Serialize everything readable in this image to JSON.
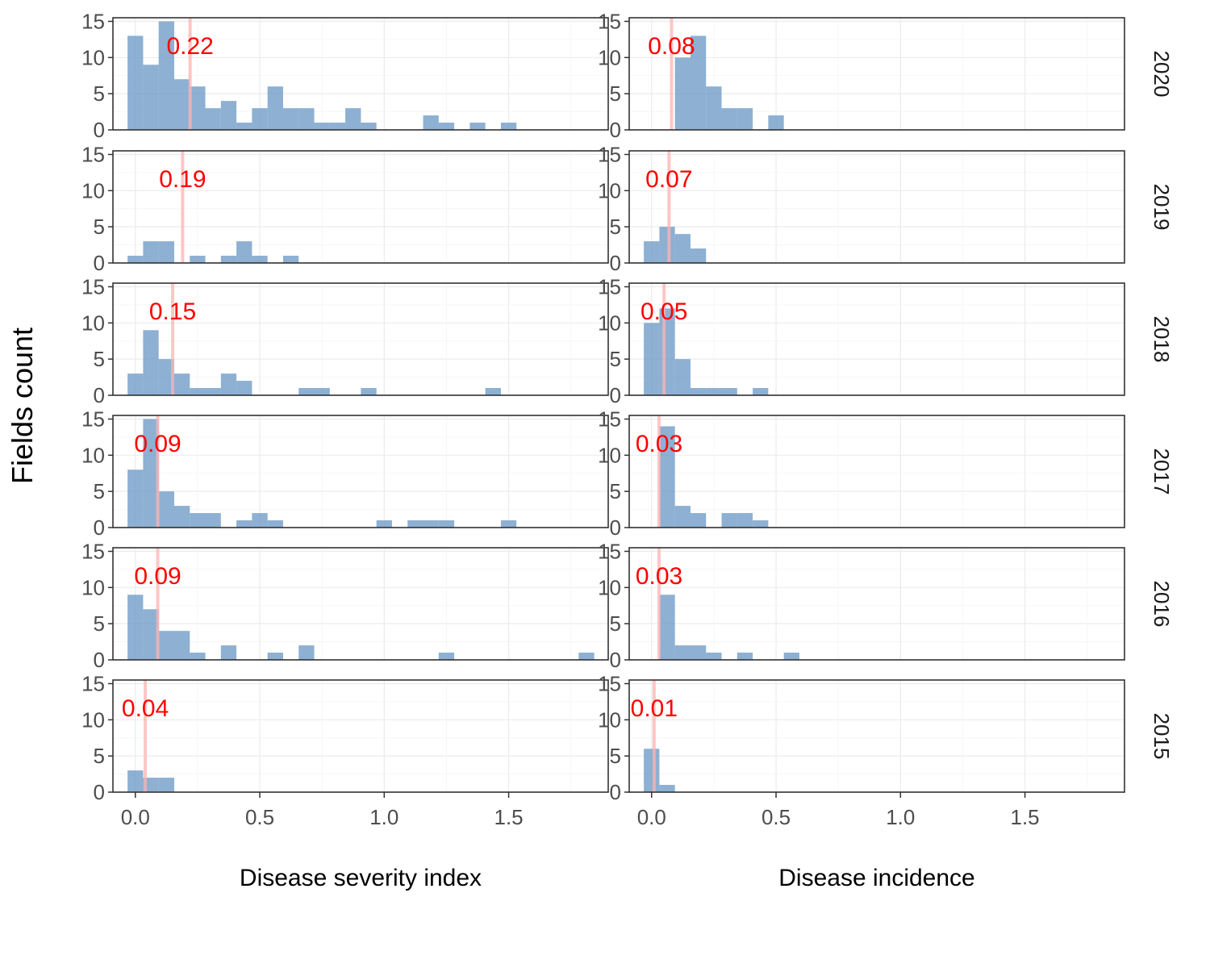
{
  "chart_data": {
    "type": "bar",
    "subtype": "faceted-histogram",
    "ylabel": "Fields count",
    "ylim": [
      0,
      15.5
    ],
    "yticks": [
      0,
      5,
      10,
      15
    ],
    "xlim": [
      -0.09,
      1.9
    ],
    "xticks": [
      0,
      0.5,
      1,
      1.5
    ],
    "xtick_labels": [
      "0.0",
      "0.5",
      "1.0",
      "1.5"
    ],
    "bin_width": 0.0625,
    "grid": true,
    "bar_color": "#6d9ac6",
    "mean_line_color": "#ffb3b3",
    "mean_label_color": "#ff0000",
    "columns": [
      {
        "label": "Disease severity index"
      },
      {
        "label": "Disease incidence"
      }
    ],
    "rows": [
      {
        "year": "2020",
        "panels": [
          {
            "mean": 0.22,
            "mean_label": "0.22",
            "bins": [
              [
                0,
                13
              ],
              [
                0.0625,
                9
              ],
              [
                0.125,
                15
              ],
              [
                0.1875,
                7
              ],
              [
                0.25,
                6
              ],
              [
                0.3125,
                3
              ],
              [
                0.375,
                4
              ],
              [
                0.4375,
                1
              ],
              [
                0.5,
                3
              ],
              [
                0.5625,
                6
              ],
              [
                0.625,
                3
              ],
              [
                0.6875,
                3
              ],
              [
                0.75,
                1
              ],
              [
                0.8125,
                1
              ],
              [
                0.875,
                3
              ],
              [
                0.9375,
                1
              ],
              [
                1.1875,
                2
              ],
              [
                1.25,
                1
              ],
              [
                1.375,
                1
              ],
              [
                1.5,
                1
              ]
            ]
          },
          {
            "mean": 0.08,
            "mean_label": "0.08",
            "bins": [
              [
                0.125,
                10
              ],
              [
                0.1875,
                13
              ],
              [
                0.25,
                6
              ],
              [
                0.3125,
                3
              ],
              [
                0.375,
                3
              ],
              [
                0.5,
                2
              ]
            ]
          }
        ]
      },
      {
        "year": "2019",
        "panels": [
          {
            "mean": 0.19,
            "mean_label": "0.19",
            "bins": [
              [
                0,
                1
              ],
              [
                0.0625,
                3
              ],
              [
                0.125,
                3
              ],
              [
                0.25,
                1
              ],
              [
                0.375,
                1
              ],
              [
                0.4375,
                3
              ],
              [
                0.5,
                1
              ],
              [
                0.625,
                1
              ]
            ]
          },
          {
            "mean": 0.07,
            "mean_label": "0.07",
            "bins": [
              [
                0,
                3
              ],
              [
                0.0625,
                5
              ],
              [
                0.125,
                4
              ],
              [
                0.1875,
                2
              ]
            ]
          }
        ]
      },
      {
        "year": "2018",
        "panels": [
          {
            "mean": 0.15,
            "mean_label": "0.15",
            "bins": [
              [
                0,
                3
              ],
              [
                0.0625,
                9
              ],
              [
                0.125,
                5
              ],
              [
                0.1875,
                3
              ],
              [
                0.25,
                1
              ],
              [
                0.3125,
                1
              ],
              [
                0.375,
                3
              ],
              [
                0.4375,
                2
              ],
              [
                0.6875,
                1
              ],
              [
                0.75,
                1
              ],
              [
                0.9375,
                1
              ],
              [
                1.4375,
                1
              ]
            ]
          },
          {
            "mean": 0.05,
            "mean_label": "0.05",
            "bins": [
              [
                0,
                10
              ],
              [
                0.0625,
                12
              ],
              [
                0.125,
                5
              ],
              [
                0.1875,
                1
              ],
              [
                0.25,
                1
              ],
              [
                0.3125,
                1
              ],
              [
                0.4375,
                1
              ]
            ]
          }
        ]
      },
      {
        "year": "2017",
        "panels": [
          {
            "mean": 0.09,
            "mean_label": "0.09",
            "bins": [
              [
                0,
                8
              ],
              [
                0.0625,
                15
              ],
              [
                0.125,
                5
              ],
              [
                0.1875,
                3
              ],
              [
                0.25,
                2
              ],
              [
                0.3125,
                2
              ],
              [
                0.4375,
                1
              ],
              [
                0.5,
                2
              ],
              [
                0.5625,
                1
              ],
              [
                1,
                1
              ],
              [
                1.125,
                1
              ],
              [
                1.1875,
                1
              ],
              [
                1.25,
                1
              ],
              [
                1.5,
                1
              ]
            ]
          },
          {
            "mean": 0.03,
            "mean_label": "0.03",
            "bins": [
              [
                0.0625,
                14
              ],
              [
                0.125,
                3
              ],
              [
                0.1875,
                2
              ],
              [
                0.3125,
                2
              ],
              [
                0.375,
                2
              ],
              [
                0.4375,
                1
              ]
            ]
          }
        ]
      },
      {
        "year": "2016",
        "panels": [
          {
            "mean": 0.09,
            "mean_label": "0.09",
            "bins": [
              [
                0,
                9
              ],
              [
                0.0625,
                7
              ],
              [
                0.125,
                4
              ],
              [
                0.1875,
                4
              ],
              [
                0.25,
                1
              ],
              [
                0.375,
                2
              ],
              [
                0.5625,
                1
              ],
              [
                0.6875,
                2
              ],
              [
                1.25,
                1
              ],
              [
                1.8125,
                1
              ]
            ]
          },
          {
            "mean": 0.03,
            "mean_label": "0.03",
            "bins": [
              [
                0.0625,
                9
              ],
              [
                0.125,
                2
              ],
              [
                0.1875,
                2
              ],
              [
                0.25,
                1
              ],
              [
                0.375,
                1
              ],
              [
                0.5625,
                1
              ]
            ]
          }
        ]
      },
      {
        "year": "2015",
        "panels": [
          {
            "mean": 0.04,
            "mean_label": "0.04",
            "bins": [
              [
                0,
                3
              ],
              [
                0.0625,
                2
              ],
              [
                0.125,
                2
              ]
            ]
          },
          {
            "mean": 0.01,
            "mean_label": "0.01",
            "bins": [
              [
                0,
                6
              ],
              [
                0.0625,
                1
              ]
            ]
          }
        ]
      }
    ]
  }
}
